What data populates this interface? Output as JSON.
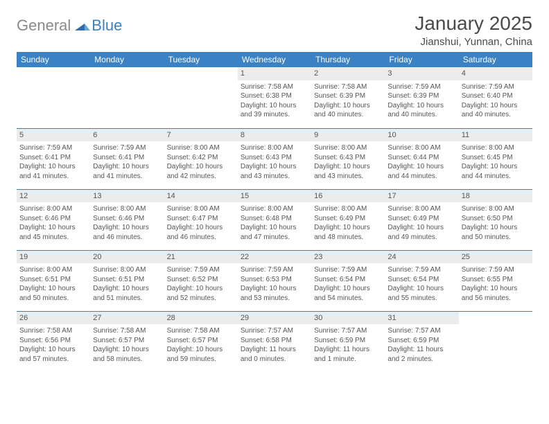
{
  "brand": {
    "part1": "General",
    "part2": "Blue",
    "triangle_color": "#2f6fb0"
  },
  "title": "January 2025",
  "location": "Jianshui, Yunnan, China",
  "colors": {
    "header_bg": "#3b82c4",
    "header_text": "#ffffff",
    "daynum_bg": "#ececec",
    "row_divider": "#3b82c4",
    "body_text": "#555555",
    "title_text": "#4a4a4a"
  },
  "weekdays": [
    "Sunday",
    "Monday",
    "Tuesday",
    "Wednesday",
    "Thursday",
    "Friday",
    "Saturday"
  ],
  "weeks": [
    [
      null,
      null,
      null,
      {
        "n": "1",
        "sr": "Sunrise: 7:58 AM",
        "ss": "Sunset: 6:38 PM",
        "d1": "Daylight: 10 hours",
        "d2": "and 39 minutes."
      },
      {
        "n": "2",
        "sr": "Sunrise: 7:58 AM",
        "ss": "Sunset: 6:39 PM",
        "d1": "Daylight: 10 hours",
        "d2": "and 40 minutes."
      },
      {
        "n": "3",
        "sr": "Sunrise: 7:59 AM",
        "ss": "Sunset: 6:39 PM",
        "d1": "Daylight: 10 hours",
        "d2": "and 40 minutes."
      },
      {
        "n": "4",
        "sr": "Sunrise: 7:59 AM",
        "ss": "Sunset: 6:40 PM",
        "d1": "Daylight: 10 hours",
        "d2": "and 40 minutes."
      }
    ],
    [
      {
        "n": "5",
        "sr": "Sunrise: 7:59 AM",
        "ss": "Sunset: 6:41 PM",
        "d1": "Daylight: 10 hours",
        "d2": "and 41 minutes."
      },
      {
        "n": "6",
        "sr": "Sunrise: 7:59 AM",
        "ss": "Sunset: 6:41 PM",
        "d1": "Daylight: 10 hours",
        "d2": "and 41 minutes."
      },
      {
        "n": "7",
        "sr": "Sunrise: 8:00 AM",
        "ss": "Sunset: 6:42 PM",
        "d1": "Daylight: 10 hours",
        "d2": "and 42 minutes."
      },
      {
        "n": "8",
        "sr": "Sunrise: 8:00 AM",
        "ss": "Sunset: 6:43 PM",
        "d1": "Daylight: 10 hours",
        "d2": "and 43 minutes."
      },
      {
        "n": "9",
        "sr": "Sunrise: 8:00 AM",
        "ss": "Sunset: 6:43 PM",
        "d1": "Daylight: 10 hours",
        "d2": "and 43 minutes."
      },
      {
        "n": "10",
        "sr": "Sunrise: 8:00 AM",
        "ss": "Sunset: 6:44 PM",
        "d1": "Daylight: 10 hours",
        "d2": "and 44 minutes."
      },
      {
        "n": "11",
        "sr": "Sunrise: 8:00 AM",
        "ss": "Sunset: 6:45 PM",
        "d1": "Daylight: 10 hours",
        "d2": "and 44 minutes."
      }
    ],
    [
      {
        "n": "12",
        "sr": "Sunrise: 8:00 AM",
        "ss": "Sunset: 6:46 PM",
        "d1": "Daylight: 10 hours",
        "d2": "and 45 minutes."
      },
      {
        "n": "13",
        "sr": "Sunrise: 8:00 AM",
        "ss": "Sunset: 6:46 PM",
        "d1": "Daylight: 10 hours",
        "d2": "and 46 minutes."
      },
      {
        "n": "14",
        "sr": "Sunrise: 8:00 AM",
        "ss": "Sunset: 6:47 PM",
        "d1": "Daylight: 10 hours",
        "d2": "and 46 minutes."
      },
      {
        "n": "15",
        "sr": "Sunrise: 8:00 AM",
        "ss": "Sunset: 6:48 PM",
        "d1": "Daylight: 10 hours",
        "d2": "and 47 minutes."
      },
      {
        "n": "16",
        "sr": "Sunrise: 8:00 AM",
        "ss": "Sunset: 6:49 PM",
        "d1": "Daylight: 10 hours",
        "d2": "and 48 minutes."
      },
      {
        "n": "17",
        "sr": "Sunrise: 8:00 AM",
        "ss": "Sunset: 6:49 PM",
        "d1": "Daylight: 10 hours",
        "d2": "and 49 minutes."
      },
      {
        "n": "18",
        "sr": "Sunrise: 8:00 AM",
        "ss": "Sunset: 6:50 PM",
        "d1": "Daylight: 10 hours",
        "d2": "and 50 minutes."
      }
    ],
    [
      {
        "n": "19",
        "sr": "Sunrise: 8:00 AM",
        "ss": "Sunset: 6:51 PM",
        "d1": "Daylight: 10 hours",
        "d2": "and 50 minutes."
      },
      {
        "n": "20",
        "sr": "Sunrise: 8:00 AM",
        "ss": "Sunset: 6:51 PM",
        "d1": "Daylight: 10 hours",
        "d2": "and 51 minutes."
      },
      {
        "n": "21",
        "sr": "Sunrise: 7:59 AM",
        "ss": "Sunset: 6:52 PM",
        "d1": "Daylight: 10 hours",
        "d2": "and 52 minutes."
      },
      {
        "n": "22",
        "sr": "Sunrise: 7:59 AM",
        "ss": "Sunset: 6:53 PM",
        "d1": "Daylight: 10 hours",
        "d2": "and 53 minutes."
      },
      {
        "n": "23",
        "sr": "Sunrise: 7:59 AM",
        "ss": "Sunset: 6:54 PM",
        "d1": "Daylight: 10 hours",
        "d2": "and 54 minutes."
      },
      {
        "n": "24",
        "sr": "Sunrise: 7:59 AM",
        "ss": "Sunset: 6:54 PM",
        "d1": "Daylight: 10 hours",
        "d2": "and 55 minutes."
      },
      {
        "n": "25",
        "sr": "Sunrise: 7:59 AM",
        "ss": "Sunset: 6:55 PM",
        "d1": "Daylight: 10 hours",
        "d2": "and 56 minutes."
      }
    ],
    [
      {
        "n": "26",
        "sr": "Sunrise: 7:58 AM",
        "ss": "Sunset: 6:56 PM",
        "d1": "Daylight: 10 hours",
        "d2": "and 57 minutes."
      },
      {
        "n": "27",
        "sr": "Sunrise: 7:58 AM",
        "ss": "Sunset: 6:57 PM",
        "d1": "Daylight: 10 hours",
        "d2": "and 58 minutes."
      },
      {
        "n": "28",
        "sr": "Sunrise: 7:58 AM",
        "ss": "Sunset: 6:57 PM",
        "d1": "Daylight: 10 hours",
        "d2": "and 59 minutes."
      },
      {
        "n": "29",
        "sr": "Sunrise: 7:57 AM",
        "ss": "Sunset: 6:58 PM",
        "d1": "Daylight: 11 hours",
        "d2": "and 0 minutes."
      },
      {
        "n": "30",
        "sr": "Sunrise: 7:57 AM",
        "ss": "Sunset: 6:59 PM",
        "d1": "Daylight: 11 hours",
        "d2": "and 1 minute."
      },
      {
        "n": "31",
        "sr": "Sunrise: 7:57 AM",
        "ss": "Sunset: 6:59 PM",
        "d1": "Daylight: 11 hours",
        "d2": "and 2 minutes."
      },
      null
    ]
  ]
}
